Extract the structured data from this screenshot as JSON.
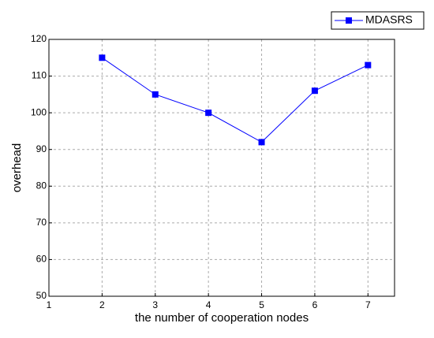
{
  "chart_data": {
    "type": "line",
    "x_label": "the number of cooperation nodes",
    "y_label": "overhead",
    "x": [
      2,
      3,
      4,
      5,
      6,
      7
    ],
    "series": [
      {
        "name": "MDASRS",
        "color": "#0000ff",
        "values": [
          115,
          105,
          100,
          92,
          106,
          113
        ]
      }
    ],
    "xlim": [
      1,
      7.5
    ],
    "xticks": [
      1,
      2,
      3,
      4,
      5,
      6,
      7
    ],
    "ylim": [
      50,
      120
    ],
    "yticks": [
      50,
      60,
      70,
      80,
      90,
      100,
      110,
      120
    ],
    "grid": true,
    "legend": "top-right"
  }
}
